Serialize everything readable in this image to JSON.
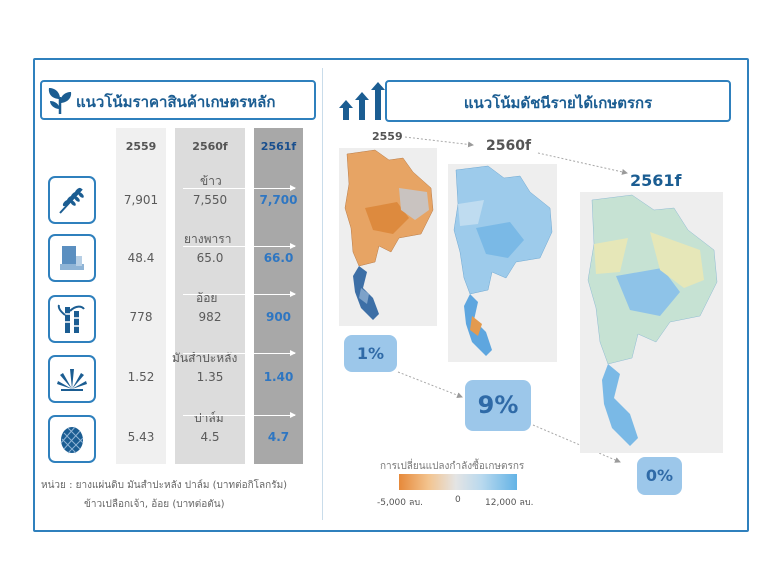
{
  "left_title": "แนวโน้มราคาสินค้าเกษตรหลัก",
  "right_title": "แนวโน้มดัชนีรายได้เกษตรกร",
  "years": [
    "2559",
    "2560f",
    "2561f"
  ],
  "commodities": [
    {
      "name": "ข้าว",
      "icon": "rice-icon",
      "v2559": "7,901",
      "v2560": "7,550",
      "v2561": "7,700"
    },
    {
      "name": "ยางพารา",
      "icon": "rubber-sheet-icon",
      "v2559": "48.4",
      "v2560": "65.0",
      "v2561": "66.0"
    },
    {
      "name": "อ้อย",
      "icon": "sugarcane-icon",
      "v2559": "778",
      "v2560": "982",
      "v2561": "900"
    },
    {
      "name": "มันสำปะหลัง",
      "icon": "cassava-icon",
      "v2559": "1.52",
      "v2560": "1.35",
      "v2561": "1.40"
    },
    {
      "name": "ปาล์ม",
      "icon": "palm-fruit-icon",
      "v2559": "5.43",
      "v2560": "4.5",
      "v2561": "4.7"
    }
  ],
  "unit_line1": "หน่วย : ยางแผ่นดิบ มันสำปะหลัง ปาล์ม (บาทต่อกิโลกรัม)",
  "unit_line2": "ข้าวเปลือกเจ้า, อ้อย (บาทต่อตัน)",
  "maps": [
    {
      "year": "2559",
      "pct": "1%"
    },
    {
      "year": "2560f",
      "pct": "9%"
    },
    {
      "year": "2561f",
      "pct": "0%"
    }
  ],
  "legend": {
    "title": "การเปลี่ยนแปลงกำลังซื้อเกษตรกร",
    "min": "-5,000 ลบ.",
    "mid": "0",
    "max": "12,000 ลบ."
  },
  "colors": {
    "accent": "#2f80bd",
    "title_text": "#1b5d92",
    "highlight_value": "#2e76c2"
  }
}
